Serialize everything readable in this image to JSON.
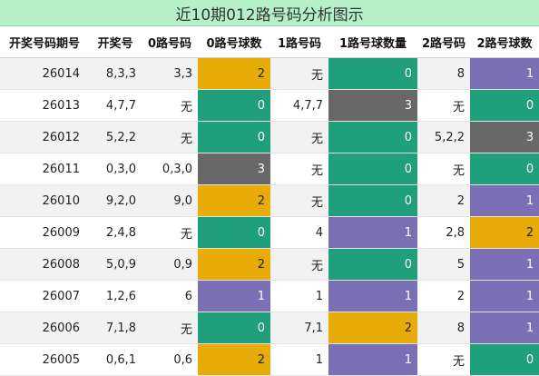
{
  "title": "近10期012路号码分析图示",
  "colors": {
    "count_0": "#1fa07a",
    "count_1": "#7b6fb6",
    "count_2": "#e7ac07",
    "count_3": "#686868",
    "title_bg": "#b6f0c8"
  },
  "columns": [
    "开奖号码期号",
    "开奖号",
    "0路号码",
    "0路号球数",
    "1路号码",
    "1路号球数量",
    "2路号码",
    "2路号球数"
  ],
  "rows": [
    {
      "period": "26014",
      "draw": "8,3,3",
      "r0": "3,3",
      "c0": "2",
      "r1": "无",
      "c1": "0",
      "r2": "8",
      "c2": "1"
    },
    {
      "period": "26013",
      "draw": "4,7,7",
      "r0": "无",
      "c0": "0",
      "r1": "4,7,7",
      "c1": "3",
      "r2": "无",
      "c2": "0"
    },
    {
      "period": "26012",
      "draw": "5,2,2",
      "r0": "无",
      "c0": "0",
      "r1": "无",
      "c1": "0",
      "r2": "5,2,2",
      "c2": "3"
    },
    {
      "period": "26011",
      "draw": "0,3,0",
      "r0": "0,3,0",
      "c0": "3",
      "r1": "无",
      "c1": "0",
      "r2": "无",
      "c2": "0"
    },
    {
      "period": "26010",
      "draw": "9,2,0",
      "r0": "9,0",
      "c0": "2",
      "r1": "无",
      "c1": "0",
      "r2": "2",
      "c2": "1"
    },
    {
      "period": "26009",
      "draw": "2,4,8",
      "r0": "无",
      "c0": "0",
      "r1": "4",
      "c1": "1",
      "r2": "2,8",
      "c2": "2"
    },
    {
      "period": "26008",
      "draw": "5,0,9",
      "r0": "0,9",
      "c0": "2",
      "r1": "无",
      "c1": "0",
      "r2": "5",
      "c2": "1"
    },
    {
      "period": "26007",
      "draw": "1,2,6",
      "r0": "6",
      "c0": "1",
      "r1": "1",
      "c1": "1",
      "r2": "2",
      "c2": "1"
    },
    {
      "period": "26006",
      "draw": "7,1,8",
      "r0": "无",
      "c0": "0",
      "r1": "7,1",
      "c1": "2",
      "r2": "8",
      "c2": "1"
    },
    {
      "period": "26005",
      "draw": "0,6,1",
      "r0": "0,6",
      "c0": "2",
      "r1": "1",
      "c1": "1",
      "r2": "无",
      "c2": "0"
    }
  ]
}
